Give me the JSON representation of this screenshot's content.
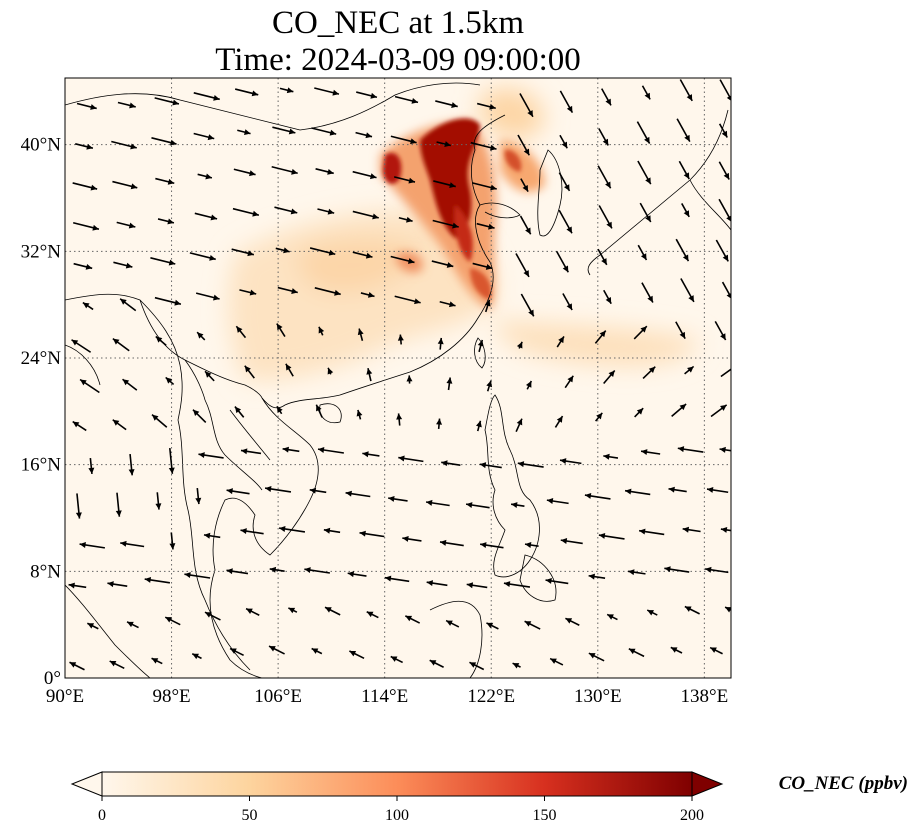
{
  "title": {
    "line1": "CO_NEC at 1.5km",
    "line2": "Time: 2024-03-09 09:00:00"
  },
  "map": {
    "lon_range": [
      90,
      140
    ],
    "lat_range": [
      0,
      45
    ],
    "lon_ticks": [
      {
        "value": 90,
        "label": "90°E"
      },
      {
        "value": 98,
        "label": "98°E"
      },
      {
        "value": 106,
        "label": "106°E"
      },
      {
        "value": 114,
        "label": "114°E"
      },
      {
        "value": 122,
        "label": "122°E"
      },
      {
        "value": 130,
        "label": "130°E"
      },
      {
        "value": 138,
        "label": "138°E"
      }
    ],
    "lat_ticks": [
      {
        "value": 0,
        "label": "0°"
      },
      {
        "value": 8,
        "label": "8°N"
      },
      {
        "value": 16,
        "label": "16°N"
      },
      {
        "value": 24,
        "label": "24°N"
      },
      {
        "value": 32,
        "label": "32°N"
      },
      {
        "value": 40,
        "label": "40°N"
      }
    ],
    "gridlines": true,
    "colormap": "OrRd",
    "colors": [
      "#fff7ec",
      "#fdd49e",
      "#fc8d59",
      "#d7301f",
      "#7f0000"
    ],
    "concentration_regions": [
      {
        "lon": 110,
        "lat": 30,
        "value": 25
      },
      {
        "lon": 118,
        "lat": 27,
        "value": 35
      },
      {
        "lon": 128,
        "lat": 25.5,
        "value": 25
      },
      {
        "lon": 105,
        "lat": 23,
        "value": 15
      },
      {
        "lon": 120,
        "lat": 37,
        "value": 120
      },
      {
        "lon": 118,
        "lat": 40.5,
        "value": 190
      },
      {
        "lon": 120.5,
        "lat": 33,
        "value": 130
      }
    ],
    "wind_vectors_shown": true
  },
  "colorbar": {
    "label": "CO_NEC (ppbv)",
    "range": [
      0,
      200
    ],
    "extend": "both",
    "ticks": [
      {
        "value": 0,
        "label": "0"
      },
      {
        "value": 50,
        "label": "50"
      },
      {
        "value": 100,
        "label": "100"
      },
      {
        "value": 150,
        "label": "150"
      },
      {
        "value": 200,
        "label": "200"
      }
    ]
  }
}
